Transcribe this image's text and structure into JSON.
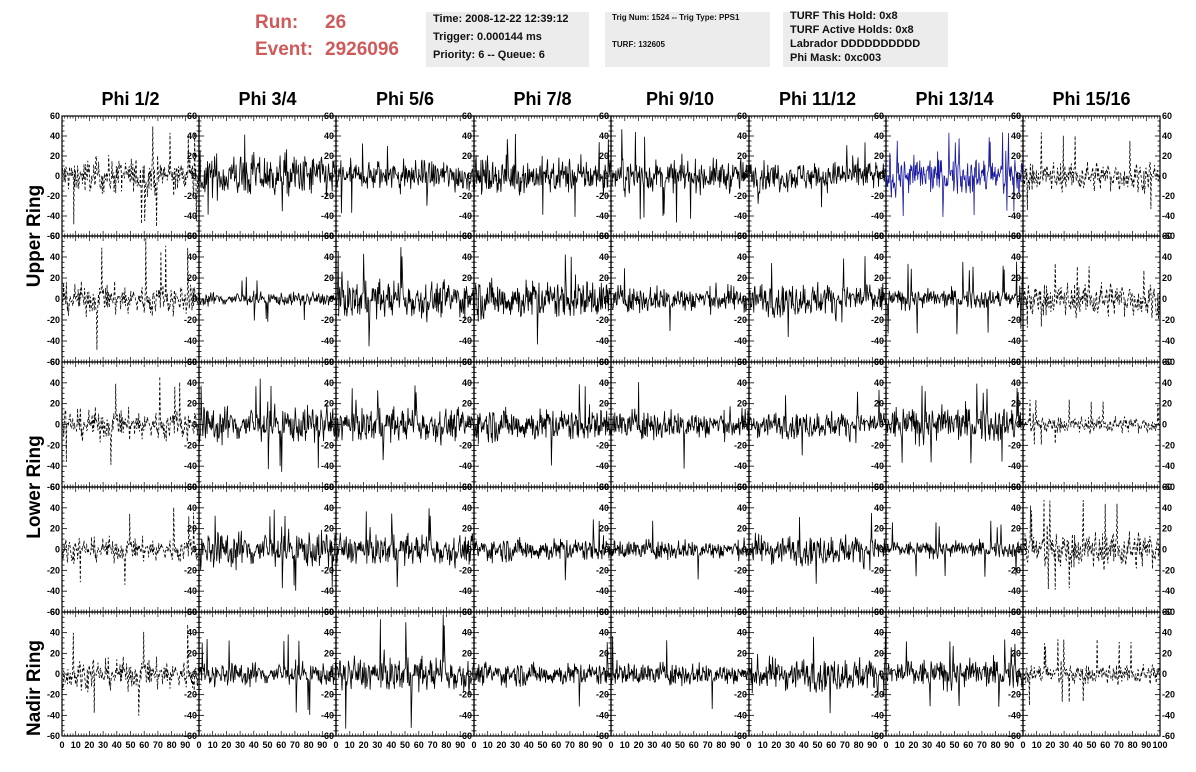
{
  "header": {
    "run_label": "Run:",
    "run_value": "26",
    "event_label": "Event:",
    "event_value": "2926096",
    "box1": [
      "Time: 2008-12-22 12:39:12",
      "Trigger: 0.000144 ms",
      "Priority: 6 -- Queue: 6"
    ],
    "box2": [
      "Trig Num: 1524 -- Trig Type: PPS1",
      "TURF: 132605"
    ],
    "box3": [
      "TURF This Hold: 0x8",
      "TURF Active Holds: 0x8",
      "Labrador DDDDDDDDDD",
      "Phi Mask: 0xc003"
    ]
  },
  "colors": {
    "run_text": "#d05a5a",
    "trace": "#000000",
    "highlight_trace": "#1a1aa0",
    "info_bg": "#ececec"
  },
  "chart_data": {
    "type": "line",
    "columns": [
      "Phi 1/2",
      "Phi 3/4",
      "Phi 5/6",
      "Phi 7/8",
      "Phi 9/10",
      "Phi 11/12",
      "Phi 13/14",
      "Phi 15/16"
    ],
    "rows": [
      "Upper Ring",
      "Lower Ring",
      "Nadir Ring"
    ],
    "ylim": [
      -60,
      60
    ],
    "xlim": [
      0,
      100
    ],
    "y_ticks": [
      -60,
      -40,
      -20,
      0,
      20,
      40,
      60
    ],
    "x_ticks": [
      0,
      10,
      20,
      30,
      40,
      50,
      60,
      70,
      80,
      90,
      100
    ],
    "x_tick_labels": [
      "0",
      "10",
      "20",
      "30",
      "40",
      "50",
      "60",
      "70",
      "80",
      "90",
      "100"
    ],
    "y_tick_labels": [
      "60",
      "40",
      "20",
      "0",
      "-20",
      "-40",
      "-60"
    ],
    "panel_rows": 5,
    "dashed_columns": [
      0,
      7
    ],
    "highlight_panel": [
      0,
      6
    ],
    "panel_amplitudes": [
      [
        22,
        28,
        20,
        22,
        20,
        18,
        24,
        18
      ],
      [
        18,
        8,
        22,
        24,
        16,
        20,
        12,
        20
      ],
      [
        18,
        22,
        20,
        20,
        18,
        16,
        22,
        10
      ],
      [
        14,
        22,
        18,
        14,
        12,
        18,
        10,
        22
      ],
      [
        18,
        14,
        20,
        14,
        14,
        20,
        18,
        12
      ]
    ],
    "panel_peaks": [
      [
        52,
        42,
        38,
        44,
        48,
        36,
        44,
        44
      ],
      [
        60,
        22,
        50,
        44,
        36,
        44,
        36,
        34
      ],
      [
        48,
        46,
        38,
        40,
        50,
        36,
        40,
        24
      ],
      [
        42,
        40,
        40,
        30,
        34,
        40,
        28,
        48
      ],
      [
        50,
        40,
        58,
        32,
        40,
        46,
        34,
        34
      ]
    ]
  }
}
